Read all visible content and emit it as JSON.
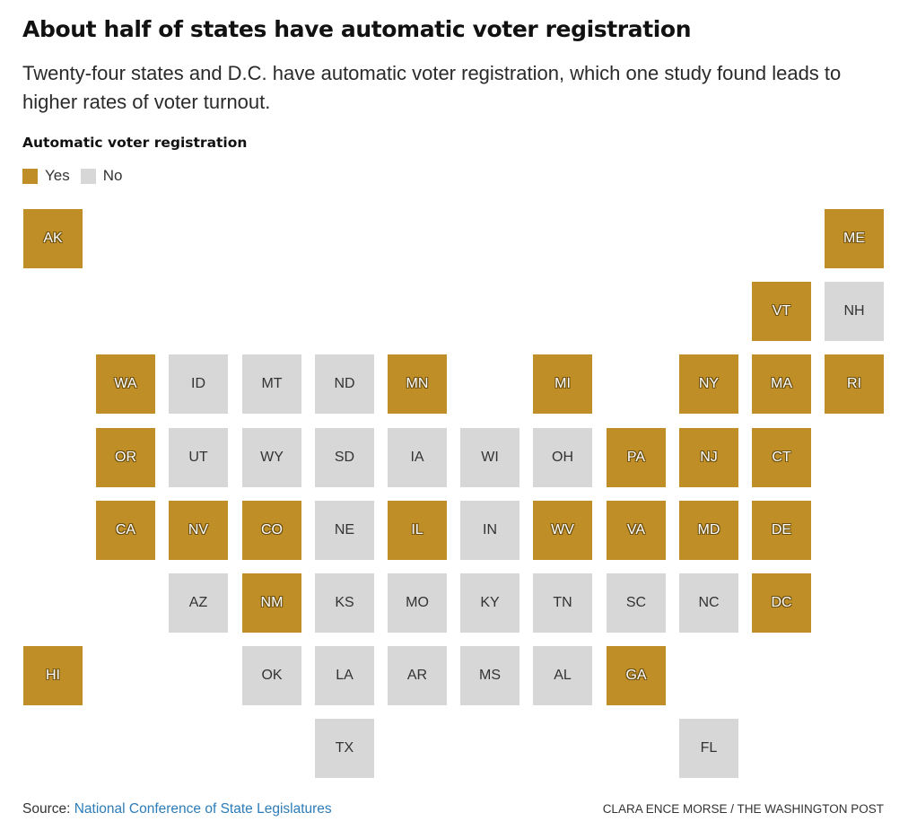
{
  "headline": "About half of states have automatic voter registration",
  "dek": "Twenty-four states and D.C. have automatic voter registration, which one study found leads to higher rates of voter turnout.",
  "legend": {
    "title": "Automatic voter registration",
    "yes_label": "Yes",
    "no_label": "No"
  },
  "colors": {
    "yes": "#bf8e27",
    "no": "#d7d7d7"
  },
  "tiles": [
    {
      "abbr": "AK",
      "col": 0,
      "row": 0,
      "avr": true
    },
    {
      "abbr": "ME",
      "col": 11,
      "row": 0,
      "avr": true
    },
    {
      "abbr": "VT",
      "col": 10,
      "row": 1,
      "avr": true
    },
    {
      "abbr": "NH",
      "col": 11,
      "row": 1,
      "avr": false
    },
    {
      "abbr": "WA",
      "col": 1,
      "row": 2,
      "avr": true
    },
    {
      "abbr": "ID",
      "col": 2,
      "row": 2,
      "avr": false
    },
    {
      "abbr": "MT",
      "col": 3,
      "row": 2,
      "avr": false
    },
    {
      "abbr": "ND",
      "col": 4,
      "row": 2,
      "avr": false
    },
    {
      "abbr": "MN",
      "col": 5,
      "row": 2,
      "avr": true
    },
    {
      "abbr": "MI",
      "col": 7,
      "row": 2,
      "avr": true
    },
    {
      "abbr": "NY",
      "col": 9,
      "row": 2,
      "avr": true
    },
    {
      "abbr": "MA",
      "col": 10,
      "row": 2,
      "avr": true
    },
    {
      "abbr": "RI",
      "col": 11,
      "row": 2,
      "avr": true
    },
    {
      "abbr": "OR",
      "col": 1,
      "row": 3,
      "avr": true
    },
    {
      "abbr": "UT",
      "col": 2,
      "row": 3,
      "avr": false
    },
    {
      "abbr": "WY",
      "col": 3,
      "row": 3,
      "avr": false
    },
    {
      "abbr": "SD",
      "col": 4,
      "row": 3,
      "avr": false
    },
    {
      "abbr": "IA",
      "col": 5,
      "row": 3,
      "avr": false
    },
    {
      "abbr": "WI",
      "col": 6,
      "row": 3,
      "avr": false
    },
    {
      "abbr": "OH",
      "col": 7,
      "row": 3,
      "avr": false
    },
    {
      "abbr": "PA",
      "col": 8,
      "row": 3,
      "avr": true
    },
    {
      "abbr": "NJ",
      "col": 9,
      "row": 3,
      "avr": true
    },
    {
      "abbr": "CT",
      "col": 10,
      "row": 3,
      "avr": true
    },
    {
      "abbr": "CA",
      "col": 1,
      "row": 4,
      "avr": true
    },
    {
      "abbr": "NV",
      "col": 2,
      "row": 4,
      "avr": true
    },
    {
      "abbr": "CO",
      "col": 3,
      "row": 4,
      "avr": true
    },
    {
      "abbr": "NE",
      "col": 4,
      "row": 4,
      "avr": false
    },
    {
      "abbr": "IL",
      "col": 5,
      "row": 4,
      "avr": true
    },
    {
      "abbr": "IN",
      "col": 6,
      "row": 4,
      "avr": false
    },
    {
      "abbr": "WV",
      "col": 7,
      "row": 4,
      "avr": true
    },
    {
      "abbr": "VA",
      "col": 8,
      "row": 4,
      "avr": true
    },
    {
      "abbr": "MD",
      "col": 9,
      "row": 4,
      "avr": true
    },
    {
      "abbr": "DE",
      "col": 10,
      "row": 4,
      "avr": true
    },
    {
      "abbr": "AZ",
      "col": 2,
      "row": 5,
      "avr": false
    },
    {
      "abbr": "NM",
      "col": 3,
      "row": 5,
      "avr": true
    },
    {
      "abbr": "KS",
      "col": 4,
      "row": 5,
      "avr": false
    },
    {
      "abbr": "MO",
      "col": 5,
      "row": 5,
      "avr": false
    },
    {
      "abbr": "KY",
      "col": 6,
      "row": 5,
      "avr": false
    },
    {
      "abbr": "TN",
      "col": 7,
      "row": 5,
      "avr": false
    },
    {
      "abbr": "SC",
      "col": 8,
      "row": 5,
      "avr": false
    },
    {
      "abbr": "NC",
      "col": 9,
      "row": 5,
      "avr": false
    },
    {
      "abbr": "DC",
      "col": 10,
      "row": 5,
      "avr": true
    },
    {
      "abbr": "HI",
      "col": 0,
      "row": 6,
      "avr": true
    },
    {
      "abbr": "OK",
      "col": 3,
      "row": 6,
      "avr": false
    },
    {
      "abbr": "LA",
      "col": 4,
      "row": 6,
      "avr": false
    },
    {
      "abbr": "AR",
      "col": 5,
      "row": 6,
      "avr": false
    },
    {
      "abbr": "MS",
      "col": 6,
      "row": 6,
      "avr": false
    },
    {
      "abbr": "AL",
      "col": 7,
      "row": 6,
      "avr": false
    },
    {
      "abbr": "GA",
      "col": 8,
      "row": 6,
      "avr": true
    },
    {
      "abbr": "TX",
      "col": 4,
      "row": 7,
      "avr": false
    },
    {
      "abbr": "FL",
      "col": 9,
      "row": 7,
      "avr": false
    }
  ],
  "footer": {
    "source_prefix": "Source: ",
    "source_link_text": "National Conference of State Legislatures",
    "credit": "CLARA ENCE MORSE / THE WASHINGTON POST"
  }
}
